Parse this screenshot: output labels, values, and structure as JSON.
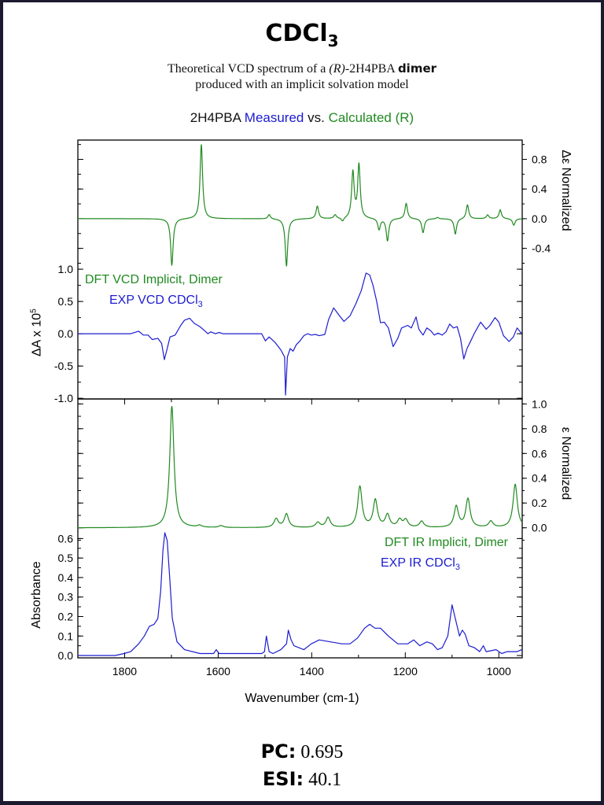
{
  "header": {
    "title_main": "CDCl",
    "title_sub": "3",
    "subtitle_part1": "Theoretical VCD spectrum of a ",
    "subtitle_italic": "(R)",
    "subtitle_part2": "-2H4PBA ",
    "subtitle_bold": "dimer",
    "subtitle_line2": "produced with an implicit solvation model"
  },
  "chart_heading": {
    "prefix": "2H4PBA ",
    "measured": "Measured",
    "vs": " vs. ",
    "calculated": "Calculated (R)"
  },
  "metrics": {
    "pc_label": "PC:",
    "pc_value": "0.695",
    "esi_label": "ESI:",
    "esi_value": "40.1"
  },
  "colors": {
    "calculated": "#218a21",
    "measured": "#1c1cd0",
    "frame": "#1b1a2e"
  },
  "chart_data": [
    {
      "type": "line",
      "panel": "VCD",
      "xlabel": "Wavenumber (cm-1)",
      "xlim": [
        1900,
        950
      ],
      "xticks": [
        1800,
        1600,
        1400,
        1200,
        1000
      ],
      "left_axis": {
        "label_main": "ΔA x 10",
        "label_sup": "5",
        "ylim": [
          -1.01,
          3.0
        ],
        "ticks": [
          "-1.0",
          "-0.5",
          "0.0",
          "0.5",
          "1.0"
        ]
      },
      "right_axis": {
        "label": "Δε Normalized",
        "ylim": [
          -2.43,
          1.06
        ],
        "ticks": [
          "-0.4",
          "0.0",
          "0.4",
          "0.8"
        ]
      },
      "grid": false,
      "legend": [
        {
          "text": "DFT VCD Implicit, Dimer",
          "sub": "",
          "color": "#218a21"
        },
        {
          "text": "EXP VCD CDCl",
          "sub": "3",
          "color": "#1c1cd0"
        }
      ],
      "series": [
        {
          "axis": "right",
          "color": "#218a21",
          "peaks": {
            "x": [
              1699,
              1636,
              1491,
              1454,
              1388,
              1350,
              1334,
              1312,
              1299,
              1256,
              1238,
              1198,
              1162,
              1131,
              1093,
              1067,
              1024,
              997,
              968
            ],
            "y": [
              -0.63,
              1.0,
              0.06,
              -0.64,
              0.17,
              0.05,
              -0.05,
              0.62,
              0.72,
              -0.15,
              -0.3,
              0.21,
              -0.19,
              0.02,
              -0.21,
              0.19,
              0.05,
              0.12,
              -0.09
            ]
          }
        },
        {
          "axis": "left",
          "color": "#1c1cd0",
          "x": [
            1900,
            1787,
            1770,
            1760,
            1750,
            1741,
            1729,
            1721,
            1715,
            1709,
            1703,
            1692,
            1680,
            1672,
            1661,
            1651,
            1639,
            1631,
            1622,
            1616,
            1606,
            1598,
            1590,
            1507,
            1499,
            1491,
            1479,
            1466,
            1458,
            1456,
            1452,
            1446,
            1440,
            1433,
            1425,
            1417,
            1409,
            1401,
            1392,
            1384,
            1372,
            1364,
            1353,
            1343,
            1331,
            1318,
            1306,
            1294,
            1284,
            1276,
            1269,
            1261,
            1253,
            1245,
            1236,
            1226,
            1216,
            1208,
            1195,
            1187,
            1177,
            1171,
            1162,
            1154,
            1146,
            1138,
            1130,
            1121,
            1113,
            1105,
            1097,
            1089,
            1082,
            1075,
            1068,
            1060,
            1052,
            1039,
            1027,
            1019,
            1008,
            1000,
            990,
            978,
            969,
            961,
            951
          ],
          "y": [
            0,
            0,
            0.04,
            -0.02,
            -0.02,
            -0.09,
            -0.07,
            -0.15,
            -0.4,
            -0.23,
            -0.05,
            -0.02,
            0.13,
            0.21,
            0.24,
            0.16,
            0.11,
            0.06,
            0,
            0.03,
            0,
            0.02,
            0,
            0,
            -0.11,
            -0.05,
            -0.13,
            -0.25,
            -0.36,
            -0.95,
            -0.36,
            -0.23,
            -0.27,
            -0.17,
            -0.11,
            -0.03,
            0,
            -0.02,
            -0.01,
            -0.03,
            -0.01,
            0.22,
            0.4,
            0.3,
            0.19,
            0.28,
            0.46,
            0.67,
            0.94,
            0.91,
            0.75,
            0.5,
            0.17,
            0.18,
            0.09,
            -0.2,
            -0.07,
            0.09,
            0.13,
            0.09,
            0.26,
            0.07,
            -0.02,
            0.09,
            0.05,
            -0.02,
            0.01,
            -0.02,
            0.03,
            0.15,
            0.09,
            0.11,
            -0.07,
            -0.39,
            -0.23,
            -0.11,
            0.01,
            0.18,
            0.07,
            0.13,
            0.25,
            0.18,
            -0.03,
            -0.12,
            -0.05,
            0.09,
            0
          ]
        }
      ]
    },
    {
      "type": "line",
      "panel": "IR",
      "xlabel": "Wavenumber (cm-1)",
      "xlim": [
        1900,
        950
      ],
      "xticks": [
        1800,
        1600,
        1400,
        1200,
        1000
      ],
      "left_axis": {
        "label": "Absorbance",
        "ylim": [
          -0.012,
          1.316
        ],
        "ticks": [
          "0.0",
          "0.1",
          "0.2",
          "0.3",
          "0.4",
          "0.5",
          "0.6"
        ]
      },
      "right_axis": {
        "label": "ε Normalized",
        "ylim": [
          -1.05,
          1.04
        ],
        "ticks": [
          "0.0",
          "0.2",
          "0.4",
          "0.6",
          "0.8",
          "1.0"
        ]
      },
      "grid": false,
      "legend": [
        {
          "text": "DFT IR Implicit, Dimer",
          "sub": "",
          "color": "#218a21"
        },
        {
          "text": "EXP IR CDCl",
          "sub": "3",
          "color": "#1c1cd0"
        }
      ],
      "series": [
        {
          "axis": "right",
          "color": "#218a21",
          "peaks": {
            "x": [
              1699,
              1640,
              1594,
              1476,
              1454,
              1387,
              1365,
              1297,
              1264,
              1238,
              1212,
              1199,
              1165,
              1091,
              1066,
              1017,
              965
            ],
            "y": [
              0.98,
              0.015,
              0.015,
              0.07,
              0.11,
              0.04,
              0.08,
              0.33,
              0.22,
              0.1,
              0.06,
              0.06,
              0.05,
              0.17,
              0.23,
              0.05,
              0.35
            ]
          }
        },
        {
          "axis": "left",
          "color": "#1c1cd0",
          "x": [
            1900,
            1820,
            1801,
            1787,
            1770,
            1758,
            1747,
            1737,
            1729,
            1723,
            1718,
            1714,
            1709,
            1704,
            1698,
            1688,
            1672,
            1639,
            1610,
            1604,
            1598,
            1585,
            1573,
            1507,
            1501,
            1497,
            1491,
            1483,
            1466,
            1454,
            1450,
            1444,
            1438,
            1417,
            1401,
            1384,
            1360,
            1335,
            1318,
            1302,
            1287,
            1276,
            1265,
            1253,
            1236,
            1216,
            1195,
            1182,
            1169,
            1154,
            1142,
            1131,
            1121,
            1109,
            1100,
            1090,
            1084,
            1078,
            1072,
            1064,
            1052,
            1041,
            1033,
            1027,
            1006,
            994,
            982,
            961,
            951
          ],
          "y": [
            0,
            0,
            0.01,
            0.02,
            0.06,
            0.1,
            0.15,
            0.16,
            0.19,
            0.33,
            0.54,
            0.63,
            0.59,
            0.41,
            0.19,
            0.07,
            0.03,
            0.01,
            0.01,
            0.03,
            0.01,
            0.01,
            0.01,
            0.01,
            0.02,
            0.1,
            0.02,
            0.01,
            0.03,
            0.06,
            0.13,
            0.08,
            0.05,
            0.03,
            0.06,
            0.08,
            0.07,
            0.06,
            0.06,
            0.09,
            0.14,
            0.16,
            0.14,
            0.14,
            0.1,
            0.06,
            0.06,
            0.08,
            0.05,
            0.07,
            0.06,
            0.03,
            0.04,
            0.1,
            0.26,
            0.16,
            0.1,
            0.13,
            0.11,
            0.05,
            0.04,
            0.02,
            0.05,
            0.02,
            0.03,
            0.01,
            0.02,
            0.02,
            0.03
          ]
        }
      ]
    }
  ]
}
